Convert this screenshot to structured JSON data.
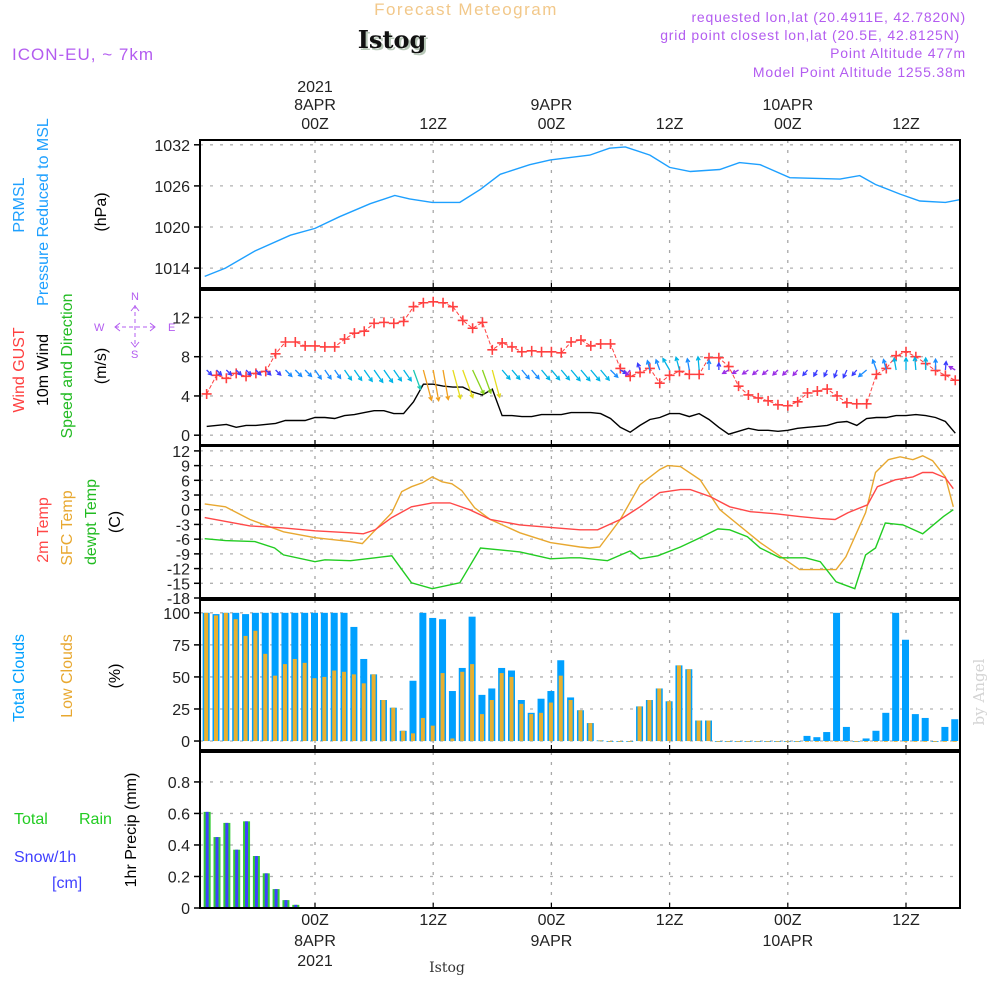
{
  "header": {
    "title": "Forecast Meteogram",
    "station": "Istog",
    "model": "ICON-EU, ~ 7km",
    "requested": "requested lon,lat (20.4911E, 42.7820N)",
    "grid_point": "grid point closest lon,lat (20.5E, 42.8125N)",
    "point_altitude": "Point Altitude 477m",
    "model_altitude": "Model Point Altitude 1255.38m"
  },
  "labels": {
    "prmsl": "PRMSL",
    "pressure_reduced": "Pressure Reduced to MSL",
    "hpa": "(hPa)",
    "wind_gust": "Wind GUST",
    "wind_10m": "10m Wind",
    "speed_dir": "Speed and Direction",
    "ms": "(m/s)",
    "t2m": "2m Temp",
    "sfc": "SFC Temp",
    "dewpt": "dewpt Temp",
    "c": "(C)",
    "total_clouds": "Total Clouds",
    "low_clouds": "Low Clouds",
    "pct": "(%)",
    "precip": "1hr Precip (mm)",
    "total_rain_1": "Total",
    "total_rain_2": "Rain",
    "snow": "Snow/1h",
    "cm": "[cm]",
    "bottom_station": "Istog",
    "watermark": "by Angel"
  },
  "compass": {
    "n": "N",
    "s": "S",
    "w": "W",
    "e": "E"
  },
  "colors": {
    "pressure": "#1ea0ff",
    "gust": "#ff4040",
    "wind_speed": "#000000",
    "t2m": "#ff4848",
    "sfc": "#e8a830",
    "dewpt": "#22cc22",
    "total_clouds": "#00a0ff",
    "low_clouds": "#e8b030",
    "rain": "#33cc33",
    "snow": "#4040ff",
    "purple": "#b35cf0",
    "title": "#f2c88a"
  },
  "chart_data": {
    "type": "meteogram",
    "x_unit": "hours from 2021-04-08 00Z",
    "xlim": [
      -11.7,
      65.5
    ],
    "hours_start": -11,
    "x_ticks": [
      {
        "h": 0,
        "label": "00Z",
        "date": "8APR",
        "year": "2021"
      },
      {
        "h": 12,
        "label": "12Z"
      },
      {
        "h": 24,
        "label": "00Z",
        "date": "9APR"
      },
      {
        "h": 36,
        "label": "12Z"
      },
      {
        "h": 48,
        "label": "00Z",
        "date": "10APR"
      },
      {
        "h": 60,
        "label": "12Z"
      }
    ],
    "pressure": {
      "type": "line",
      "ylabel": "PRMSL Pressure Reduced to MSL (hPa)",
      "ticks": [
        1014,
        1020,
        1026,
        1032
      ],
      "ylim": [
        1011.1,
        1032.7
      ],
      "points": [
        [
          -11.2,
          1012.8
        ],
        [
          -9.1,
          1014
        ],
        [
          -6.1,
          1016.5
        ],
        [
          -2.5,
          1018.8
        ],
        [
          0,
          1019.8
        ],
        [
          2.5,
          1021.5
        ],
        [
          5.6,
          1023.4
        ],
        [
          8.1,
          1024.6
        ],
        [
          9.6,
          1024.1
        ],
        [
          11.9,
          1023.6
        ],
        [
          14.7,
          1023.6
        ],
        [
          16.8,
          1025.5
        ],
        [
          18.8,
          1027.7
        ],
        [
          21.8,
          1029.1
        ],
        [
          23.9,
          1029.8
        ],
        [
          27.9,
          1030.5
        ],
        [
          29.9,
          1031.5
        ],
        [
          31.5,
          1031.7
        ],
        [
          34,
          1030.5
        ],
        [
          36,
          1028.7
        ],
        [
          38.1,
          1028.1
        ],
        [
          41.1,
          1028.4
        ],
        [
          43.1,
          1029.4
        ],
        [
          45.2,
          1029.1
        ],
        [
          48.2,
          1027.2
        ],
        [
          53.3,
          1027
        ],
        [
          55.3,
          1027.5
        ],
        [
          56.9,
          1026.2
        ],
        [
          59.4,
          1024.8
        ],
        [
          61.4,
          1023.8
        ],
        [
          64,
          1023.6
        ],
        [
          65.5,
          1024
        ]
      ]
    },
    "wind": {
      "type": "line",
      "ylabel": "Wind GUST / 10m Wind Speed and Direction (m/s)",
      "ticks": [
        0,
        4,
        8,
        12
      ],
      "ylim": [
        -1,
        14.8
      ],
      "gust": [
        4.2,
        6.1,
        5.8,
        6.3,
        6.0,
        6.3,
        6.5,
        8.3,
        9.5,
        9.5,
        9.1,
        9.1,
        9.0,
        9.0,
        9.8,
        10.4,
        10.6,
        11.4,
        11.5,
        11.4,
        11.6,
        13.1,
        13.5,
        13.6,
        13.5,
        13.1,
        11.7,
        10.9,
        11.5,
        8.7,
        9.4,
        9.0,
        8.5,
        8.6,
        8.5,
        8.5,
        8.4,
        9.5,
        9.7,
        9.1,
        9.3,
        9.3,
        6.8,
        6.0,
        6.4,
        6.8,
        5.3,
        6.1,
        6.5,
        6.2,
        6.2,
        7.9,
        7.9,
        7.0,
        5.0,
        4.1,
        3.8,
        3.5,
        3.1,
        3.0,
        3.4,
        4.3,
        4.5,
        4.7,
        4.0,
        3.3,
        3.2,
        3.2,
        6.2,
        6.8,
        8.1,
        8.5,
        8.0,
        7.3,
        6.6,
        6.1,
        5.6
      ],
      "speed": [
        0.9,
        1.0,
        1.1,
        0.8,
        1.0,
        1.0,
        1.1,
        1.2,
        1.5,
        1.5,
        1.5,
        1.8,
        1.8,
        1.7,
        2.0,
        2.1,
        2.3,
        2.5,
        2.5,
        2.2,
        2.2,
        3.4,
        5.2,
        5.2,
        5.0,
        4.9,
        4.9,
        4.4,
        4.1,
        4.7,
        2.0,
        2.0,
        1.9,
        1.9,
        2.1,
        2.1,
        2.1,
        2.3,
        2.3,
        2.3,
        2.2,
        1.7,
        0.8,
        0.3,
        1.0,
        1.6,
        1.8,
        2.2,
        2.2,
        1.9,
        2.2,
        1.6,
        0.8,
        0.1,
        0.4,
        0.7,
        0.5,
        0.5,
        0.4,
        0.5,
        0.7,
        0.8,
        0.9,
        1.0,
        1.3,
        1.4,
        1.0,
        1.7,
        1.8,
        1.8,
        2.0,
        2.0,
        2.1,
        2.0,
        1.8,
        1.4,
        0.2
      ],
      "direction_from_deg": [
        315,
        315,
        315,
        315,
        315,
        315,
        315,
        315,
        315,
        315,
        315,
        325,
        325,
        325,
        325,
        325,
        325,
        325,
        325,
        325,
        325,
        340,
        345,
        350,
        350,
        345,
        340,
        335,
        340,
        345,
        320,
        320,
        320,
        320,
        320,
        320,
        320,
        320,
        320,
        320,
        320,
        315,
        300,
        40,
        160,
        165,
        160,
        150,
        165,
        170,
        175,
        180,
        180,
        60,
        60,
        55,
        50,
        50,
        45,
        45,
        40,
        40,
        30,
        25,
        20,
        25,
        40,
        50,
        160,
        165,
        170,
        180,
        175,
        180,
        180,
        185,
        120
      ]
    },
    "temp": {
      "type": "line",
      "ylabel": "2m Temp / SFC Temp / dewpt Temp (C)",
      "ticks": [
        12,
        9,
        6,
        3,
        0,
        -3,
        -6,
        -9,
        -12,
        -15,
        -18
      ],
      "ylim": [
        -18,
        13
      ],
      "t2m": [
        [
          -11.2,
          -1.6
        ],
        [
          -6.6,
          -3.3
        ],
        [
          -3.2,
          -3.7
        ],
        [
          0,
          -4.3
        ],
        [
          3.6,
          -4.7
        ],
        [
          4.9,
          -4.9
        ],
        [
          6.1,
          -4.1
        ],
        [
          7.8,
          -1.6
        ],
        [
          9.8,
          0.6
        ],
        [
          11.9,
          1.4
        ],
        [
          13.7,
          1.4
        ],
        [
          15.7,
          0
        ],
        [
          17.8,
          -2.0
        ],
        [
          20.8,
          -3.1
        ],
        [
          23.9,
          -3.6
        ],
        [
          26.9,
          -4.1
        ],
        [
          28.7,
          -4.1
        ],
        [
          31.0,
          -2.0
        ],
        [
          33.0,
          0.6
        ],
        [
          35.0,
          3.5
        ],
        [
          37.1,
          4.1
        ],
        [
          38.1,
          4.1
        ],
        [
          40.1,
          2.7
        ],
        [
          42.1,
          0.6
        ],
        [
          44.2,
          -0.4
        ],
        [
          46.7,
          -0.8
        ],
        [
          49.2,
          -1.4
        ],
        [
          51.3,
          -1.8
        ],
        [
          52.8,
          -2.0
        ],
        [
          54.1,
          -0.6
        ],
        [
          56.1,
          1.0
        ],
        [
          57.1,
          4.7
        ],
        [
          58.9,
          6.1
        ],
        [
          60.7,
          6.7
        ],
        [
          61.7,
          7.6
        ],
        [
          62.7,
          7.6
        ],
        [
          64.0,
          6.5
        ],
        [
          64.8,
          4.3
        ]
      ],
      "sfc": [
        [
          -11.2,
          1.2
        ],
        [
          -9.1,
          0.6
        ],
        [
          -6.6,
          -2.0
        ],
        [
          -3.2,
          -4.5
        ],
        [
          0,
          -5.7
        ],
        [
          3.6,
          -6.5
        ],
        [
          4.8,
          -6.9
        ],
        [
          7.8,
          -0.6
        ],
        [
          8.8,
          3.7
        ],
        [
          9.8,
          4.7
        ],
        [
          10.9,
          5.5
        ],
        [
          11.9,
          6.7
        ],
        [
          12.9,
          5.7
        ],
        [
          13.9,
          5.3
        ],
        [
          14.9,
          3.9
        ],
        [
          16.2,
          0.4
        ],
        [
          17.8,
          -2.0
        ],
        [
          20.8,
          -4.7
        ],
        [
          23.9,
          -6.7
        ],
        [
          26.9,
          -7.6
        ],
        [
          27.9,
          -7.8
        ],
        [
          28.9,
          -7.6
        ],
        [
          31.0,
          -2.0
        ],
        [
          33.0,
          5.1
        ],
        [
          35.0,
          8.2
        ],
        [
          35.8,
          9.0
        ],
        [
          37.1,
          8.8
        ],
        [
          39.1,
          6.1
        ],
        [
          41.1,
          0
        ],
        [
          45.2,
          -6.7
        ],
        [
          49.2,
          -12.2
        ],
        [
          52.9,
          -12.2
        ],
        [
          53.9,
          -9.6
        ],
        [
          55.9,
          -0.6
        ],
        [
          56.9,
          7.6
        ],
        [
          58.2,
          10.2
        ],
        [
          59.4,
          10.8
        ],
        [
          60.7,
          10.2
        ],
        [
          61.7,
          11.0
        ],
        [
          62.7,
          10.0
        ],
        [
          64.0,
          6.7
        ],
        [
          64.8,
          0.6
        ]
      ],
      "dewpt": [
        [
          -11.2,
          -5.9
        ],
        [
          -9.1,
          -6.3
        ],
        [
          -6.1,
          -6.5
        ],
        [
          -4.1,
          -7.8
        ],
        [
          -3.2,
          -9.2
        ],
        [
          0,
          -10.6
        ],
        [
          1.0,
          -10.2
        ],
        [
          3.6,
          -10.4
        ],
        [
          6.1,
          -9.8
        ],
        [
          7.8,
          -9.4
        ],
        [
          9.8,
          -14.9
        ],
        [
          11.9,
          -16.1
        ],
        [
          14.7,
          -14.9
        ],
        [
          16.8,
          -7.8
        ],
        [
          20.8,
          -8.6
        ],
        [
          23.9,
          -10.0
        ],
        [
          25.9,
          -9.8
        ],
        [
          26.9,
          -9.8
        ],
        [
          29.7,
          -10.4
        ],
        [
          32.0,
          -8.4
        ],
        [
          33.0,
          -10.0
        ],
        [
          34.8,
          -9.4
        ],
        [
          37.1,
          -7.6
        ],
        [
          39.1,
          -5.7
        ],
        [
          40.9,
          -3.9
        ],
        [
          42.1,
          -4.1
        ],
        [
          43.9,
          -5.5
        ],
        [
          45.2,
          -7.8
        ],
        [
          47.2,
          -9.8
        ],
        [
          49.8,
          -9.8
        ],
        [
          51.3,
          -10.6
        ],
        [
          52.9,
          -14.7
        ],
        [
          54.8,
          -16.1
        ],
        [
          55.9,
          -9.2
        ],
        [
          56.9,
          -7.8
        ],
        [
          57.9,
          -2.7
        ],
        [
          59.7,
          -3.1
        ],
        [
          61.7,
          -4.9
        ],
        [
          63.8,
          -1.4
        ],
        [
          64.8,
          0
        ]
      ]
    },
    "clouds": {
      "type": "bar",
      "ylabel": "Total Clouds / Low Clouds (%)",
      "ticks": [
        0,
        25,
        50,
        75,
        100
      ],
      "ylim": [
        -7,
        110
      ],
      "total": [
        100,
        99,
        100,
        100,
        99,
        100,
        100,
        100,
        100,
        100,
        100,
        100,
        100,
        100,
        100,
        89,
        64,
        52,
        32,
        26,
        8,
        47,
        100,
        96,
        95,
        39,
        57,
        97,
        36,
        41,
        57,
        55,
        32,
        22,
        33,
        39,
        63,
        34,
        24,
        14,
        0.5,
        0,
        0,
        0,
        27,
        32,
        41,
        31,
        59,
        56,
        16,
        16,
        0,
        0,
        0,
        0,
        0,
        0,
        0,
        0,
        0,
        4,
        3,
        7,
        100,
        11,
        0,
        2,
        8,
        22,
        100,
        79,
        21,
        18,
        0,
        11,
        17
      ],
      "low": [
        100,
        98,
        100,
        95,
        82,
        86,
        68,
        51,
        60,
        64,
        61,
        49,
        50,
        55,
        54,
        52,
        45,
        52,
        32,
        26,
        8,
        6,
        18,
        12,
        53,
        2,
        54,
        60,
        21,
        32,
        53,
        50,
        29,
        21,
        22,
        30,
        51,
        32,
        24,
        14,
        0.5,
        0,
        0,
        0,
        27,
        32,
        41,
        31,
        59,
        56,
        16,
        16,
        0,
        0,
        0,
        0,
        0,
        0,
        0,
        0,
        0,
        0,
        0,
        0,
        0,
        0,
        0,
        0,
        0,
        0,
        0,
        0,
        0,
        0,
        0,
        0,
        0
      ]
    },
    "precip": {
      "type": "bar",
      "ylabel": "1hr Precip (mm)",
      "ticks": [
        0,
        0.2,
        0.4,
        0.6,
        0.8
      ],
      "ylim": [
        0,
        0.99
      ],
      "total_rain": [
        0.61,
        0.45,
        0.54,
        0.37,
        0.55,
        0.33,
        0.22,
        0.12,
        0.05,
        0.02,
        0,
        0,
        0.003,
        0.003,
        0.003,
        0.005,
        0.005,
        0,
        0,
        0,
        0,
        0,
        0,
        0,
        0,
        0,
        0,
        0,
        0,
        0,
        0,
        0,
        0,
        0,
        0,
        0,
        0,
        0,
        0,
        0,
        0,
        0,
        0,
        0,
        0,
        0,
        0,
        0,
        0,
        0,
        0,
        0,
        0,
        0,
        0,
        0,
        0,
        0,
        0,
        0,
        0,
        0,
        0,
        0,
        0,
        0,
        0,
        0,
        0,
        0,
        0,
        0,
        0,
        0,
        0,
        0,
        0
      ],
      "snow": [
        0.61,
        0.45,
        0.54,
        0.37,
        0.55,
        0.33,
        0.22,
        0.12,
        0.05,
        0.02,
        0,
        0,
        0.003,
        0.003,
        0.003,
        0.005,
        0.005,
        0,
        0,
        0,
        0,
        0,
        0,
        0,
        0,
        0,
        0,
        0,
        0,
        0,
        0,
        0,
        0,
        0,
        0,
        0,
        0,
        0,
        0,
        0,
        0,
        0,
        0,
        0,
        0,
        0,
        0,
        0,
        0,
        0,
        0,
        0,
        0,
        0,
        0,
        0,
        0,
        0,
        0,
        0,
        0,
        0,
        0,
        0,
        0,
        0,
        0,
        0,
        0,
        0,
        0,
        0,
        0,
        0,
        0,
        0
      ]
    }
  }
}
